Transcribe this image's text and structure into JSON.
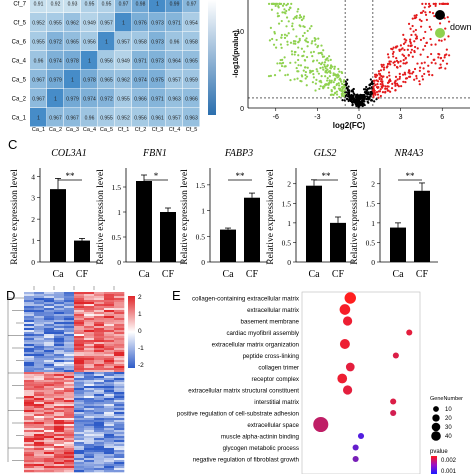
{
  "panel_labels": {
    "c": "C",
    "d": "D",
    "e": "E"
  },
  "chart_data": [
    {
      "type": "heatmap",
      "rows": [
        "Cf_7",
        "Cf_5",
        "Ca_6",
        "Ca_4",
        "Ca_5",
        "Ca_2",
        "Ca_1"
      ],
      "columns": [
        "Ca_1",
        "Ca_2",
        "Ca_3",
        "Ca_4",
        "Ca_5",
        "Cf_1",
        "Cf_2",
        "Cf_3",
        "Cf_4",
        "Cf_5"
      ],
      "values": [
        [
          0.91,
          0.92,
          0.93,
          0.95,
          0.95,
          0.97,
          0.98,
          1,
          0.99,
          0.97
        ],
        [
          0.952,
          0.955,
          0.962,
          0.949,
          0.957,
          1,
          0.976,
          0.973,
          0.971,
          0.954
        ],
        [
          0.955,
          0.972,
          0.965,
          0.956,
          1,
          0.957,
          0.958,
          0.973,
          0.96,
          0.958
        ],
        [
          0.96,
          0.974,
          0.978,
          1,
          0.956,
          0.949,
          0.971,
          0.973,
          0.964,
          0.965
        ],
        [
          0.967,
          0.979,
          1,
          0.978,
          0.965,
          0.962,
          0.974,
          0.975,
          0.957,
          0.959
        ],
        [
          0.967,
          1,
          0.979,
          0.974,
          0.972,
          0.955,
          0.966,
          0.971,
          0.963,
          0.966
        ],
        [
          1,
          0.967,
          0.967,
          0.96,
          0.955,
          0.952,
          0.956,
          0.961,
          0.957,
          0.963
        ]
      ],
      "colorbar": {
        "colors": [
          "#ffffff",
          "#2b6fae"
        ]
      }
    },
    {
      "type": "scatter",
      "xlabel": "log2(FC)",
      "ylabel": "-log10(pvalue)",
      "x_ticks": [
        "-6",
        "-3",
        "0",
        "3",
        "6"
      ],
      "y_ticks": [
        "0",
        "10"
      ],
      "legend": [
        "down"
      ],
      "colors": {
        "up": "#e31a1c",
        "down": "#8fd14f",
        "ns": "#000000"
      }
    },
    {
      "type": "bar",
      "ylabel": "Relative expression level",
      "categories": [
        "Ca",
        "CF"
      ],
      "significance": "**",
      "series": [
        {
          "name": "COL3A1",
          "values": [
            3.4,
            1.0
          ],
          "errors": [
            0.5,
            0.1
          ],
          "yticks": [
            "0",
            "1",
            "2",
            "3",
            "4"
          ],
          "ylim": [
            0,
            4.2
          ]
        },
        {
          "name": "FBN1",
          "values": [
            1.62,
            1.0
          ],
          "errors": [
            0.12,
            0.08
          ],
          "yticks": [
            "0",
            "0.5",
            "1",
            "1.5"
          ],
          "ylim": [
            0,
            1.8
          ],
          "significance": "*"
        },
        {
          "name": "FABP3",
          "values": [
            0.63,
            1.25
          ],
          "errors": [
            0.03,
            0.09
          ],
          "yticks": [
            "0",
            "0.5",
            "1",
            "1.5"
          ],
          "ylim": [
            0,
            1.75
          ]
        },
        {
          "name": "GLS2",
          "values": [
            1.95,
            1.0
          ],
          "errors": [
            0.15,
            0.15
          ],
          "yticks": [
            "0",
            "0.5",
            "1",
            "1.5",
            "2"
          ],
          "ylim": [
            0,
            2.3
          ]
        },
        {
          "name": "NR4A3",
          "values": [
            0.88,
            1.82
          ],
          "errors": [
            0.12,
            0.2
          ],
          "yticks": [
            "0",
            "0.5",
            "1",
            "1.5",
            "2"
          ],
          "ylim": [
            0,
            2.3
          ]
        }
      ]
    },
    {
      "type": "heatmap",
      "colorbar_ticks": [
        "2",
        "1",
        "0",
        "-1",
        "-2"
      ],
      "colors": [
        "#2f5cc8",
        "#ffffff",
        "#e0262a"
      ]
    },
    {
      "type": "scatter",
      "terms": [
        "collagen-containing extracellular matrix",
        "extracellular matrix",
        "basement membrane",
        "cardiac myofibril assembly",
        "extracellular matrix organization",
        "peptide cross-linking",
        "collagen trimer",
        "receptor complex",
        "extracellular matrix structural constituent",
        "interstitial matrix",
        "positive regulation of cell-substrate adhesion",
        "extracellular space",
        "muscle alpha-actinin binding",
        "glycogen metabolic process",
        "negative regulation of fibroblast growth"
      ],
      "rich_factor": [
        0.09,
        0.08,
        0.085,
        0.2,
        0.08,
        0.175,
        0.09,
        0.075,
        0.085,
        0.17,
        0.17,
        0.035,
        0.11,
        0.1,
        0.1
      ],
      "gene_number": [
        22,
        18,
        12,
        3,
        15,
        3,
        10,
        14,
        12,
        3,
        3,
        45,
        3,
        3,
        3
      ],
      "pvalue": [
        0.0001,
        0.0002,
        0.0003,
        0.0004,
        0.0003,
        0.0005,
        0.0004,
        0.0003,
        0.0004,
        0.0005,
        0.0006,
        0.0008,
        0.002,
        0.0018,
        0.0016
      ],
      "size_legend": {
        "title": "GeneNumber",
        "values": [
          10,
          20,
          30,
          40
        ]
      },
      "color_legend": {
        "title": "pvalue",
        "ticks": [
          "0.002",
          "0.001"
        ],
        "colors": [
          "#ff1a1a",
          "#1a1aff"
        ]
      }
    }
  ]
}
